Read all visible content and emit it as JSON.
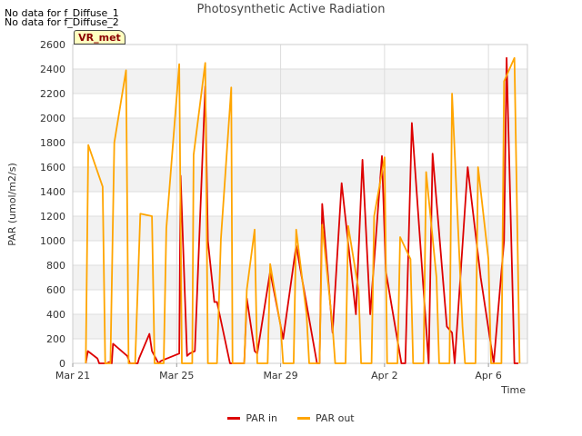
{
  "notes": [
    "No data for f_Diffuse_1",
    "No data for f_Diffuse_2"
  ],
  "tag_label": "VR_met",
  "chart_data": {
    "type": "line",
    "title": "Photosynthetic Active Radiation",
    "xlabel": "Time",
    "ylabel": "PAR (umol/m2/s)",
    "xlim": [
      0,
      17.5
    ],
    "ylim": [
      0,
      2600
    ],
    "yticks": [
      0,
      200,
      400,
      600,
      800,
      1000,
      1200,
      1400,
      1600,
      1800,
      2000,
      2200,
      2400,
      2600
    ],
    "xticks": [
      {
        "value": 0,
        "label": "Mar 21"
      },
      {
        "value": 4,
        "label": "Mar 25"
      },
      {
        "value": 8,
        "label": "Mar 29"
      },
      {
        "value": 12,
        "label": "Apr 2"
      },
      {
        "value": 16,
        "label": "Apr 6"
      }
    ],
    "grid": true,
    "legend_position": "bottom",
    "series": [
      {
        "name": "PAR in",
        "color": "#dd0000",
        "x": [
          0.5,
          0.58,
          0.95,
          1.02,
          1.3,
          1.4,
          1.5,
          1.55,
          2.1,
          2.2,
          2.5,
          2.55,
          2.95,
          3.05,
          3.3,
          3.4,
          4.1,
          4.15,
          4.4,
          4.5,
          4.7,
          5.1,
          5.2,
          5.45,
          5.55,
          6.05,
          6.15,
          6.6,
          6.7,
          7.0,
          7.1,
          7.6,
          8.1,
          8.6,
          9.4,
          9.5,
          9.6,
          10.0,
          10.35,
          10.9,
          11.15,
          11.45,
          11.9,
          12.05,
          12.65,
          12.8,
          13.05,
          13.7,
          13.85,
          14.4,
          14.6,
          14.7,
          15.2,
          15.7,
          16.2,
          16.6,
          16.7,
          17.0,
          17.1,
          17.15
        ],
        "y": [
          0,
          100,
          40,
          0,
          0,
          10,
          0,
          160,
          60,
          0,
          0,
          40,
          240,
          100,
          0,
          20,
          80,
          1530,
          60,
          80,
          100,
          2260,
          1000,
          500,
          500,
          0,
          0,
          0,
          530,
          100,
          80,
          750,
          200,
          960,
          0,
          0,
          1300,
          250,
          1470,
          400,
          1660,
          400,
          1690,
          750,
          0,
          0,
          1960,
          0,
          1710,
          300,
          250,
          0,
          1600,
          700,
          0,
          1000,
          2490,
          0,
          0,
          0
        ]
      },
      {
        "name": "PAR out",
        "color": "#ffa500",
        "x": [
          0.5,
          0.6,
          1.15,
          1.25,
          1.45,
          1.6,
          2.05,
          2.15,
          2.4,
          2.6,
          3.05,
          3.15,
          3.5,
          3.6,
          4.1,
          4.2,
          4.6,
          4.65,
          5.1,
          5.2,
          5.55,
          5.7,
          6.1,
          6.15,
          6.6,
          6.7,
          7.0,
          7.1,
          7.5,
          7.6,
          8.0,
          8.1,
          8.5,
          8.6,
          9.0,
          9.1,
          9.5,
          9.6,
          10.0,
          10.1,
          10.5,
          10.6,
          11.0,
          11.1,
          11.5,
          11.6,
          12.0,
          12.1,
          12.5,
          12.6,
          13.0,
          13.1,
          13.5,
          13.6,
          14.0,
          14.1,
          14.5,
          14.6,
          15.0,
          15.1,
          15.5,
          15.6,
          16.0,
          16.1,
          16.5,
          16.6,
          17.0,
          17.2
        ],
        "y": [
          0,
          1780,
          1440,
          0,
          0,
          1800,
          2390,
          0,
          0,
          1220,
          1200,
          0,
          0,
          1100,
          2440,
          0,
          0,
          1700,
          2450,
          0,
          0,
          1010,
          2250,
          0,
          0,
          600,
          1090,
          0,
          0,
          810,
          300,
          0,
          0,
          1090,
          400,
          0,
          0,
          1130,
          300,
          0,
          0,
          1120,
          600,
          0,
          0,
          1200,
          1680,
          0,
          0,
          1030,
          850,
          0,
          0,
          1560,
          700,
          0,
          0,
          2200,
          300,
          0,
          0,
          1600,
          850,
          0,
          0,
          2300,
          2490,
          0
        ]
      }
    ]
  }
}
